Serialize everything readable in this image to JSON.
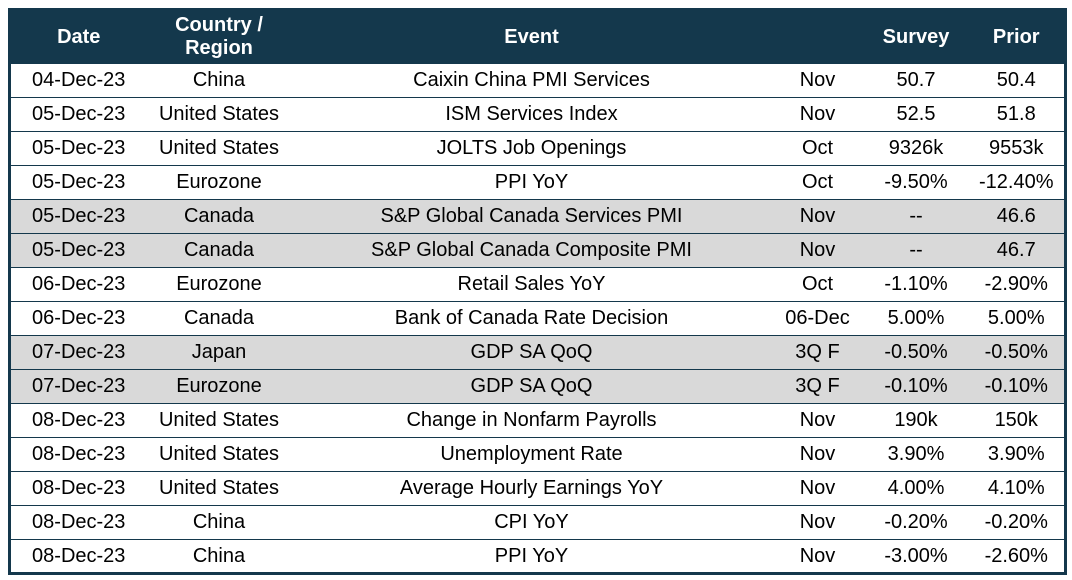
{
  "colors": {
    "header_bg": "#14384C",
    "header_text": "#FFFFFF",
    "row_shaded": "#D9D9D9",
    "border": "#14384C"
  },
  "table": {
    "columns": [
      "Date",
      "Country / Region",
      "Event",
      "",
      "Survey",
      "Prior"
    ],
    "rows": [
      {
        "date": "04-Dec-23",
        "region": "China",
        "event": "Caixin China PMI Services",
        "period": "Nov",
        "survey": "50.7",
        "prior": "50.4",
        "shaded": false
      },
      {
        "date": "05-Dec-23",
        "region": "United States",
        "event": "ISM Services Index",
        "period": "Nov",
        "survey": "52.5",
        "prior": "51.8",
        "shaded": false
      },
      {
        "date": "05-Dec-23",
        "region": "United States",
        "event": "JOLTS Job Openings",
        "period": "Oct",
        "survey": "9326k",
        "prior": "9553k",
        "shaded": false
      },
      {
        "date": "05-Dec-23",
        "region": "Eurozone",
        "event": "PPI YoY",
        "period": "Oct",
        "survey": "-9.50%",
        "prior": "-12.40%",
        "shaded": false
      },
      {
        "date": "05-Dec-23",
        "region": "Canada",
        "event": "S&P Global Canada Services PMI",
        "period": "Nov",
        "survey": "--",
        "prior": "46.6",
        "shaded": true
      },
      {
        "date": "05-Dec-23",
        "region": "Canada",
        "event": "S&P Global Canada Composite PMI",
        "period": "Nov",
        "survey": "--",
        "prior": "46.7",
        "shaded": true
      },
      {
        "date": "06-Dec-23",
        "region": "Eurozone",
        "event": "Retail Sales YoY",
        "period": "Oct",
        "survey": "-1.10%",
        "prior": "-2.90%",
        "shaded": false
      },
      {
        "date": "06-Dec-23",
        "region": "Canada",
        "event": "Bank of Canada Rate Decision",
        "period": "06-Dec",
        "survey": "5.00%",
        "prior": "5.00%",
        "shaded": false
      },
      {
        "date": "07-Dec-23",
        "region": "Japan",
        "event": "GDP SA QoQ",
        "period": "3Q F",
        "survey": "-0.50%",
        "prior": "-0.50%",
        "shaded": true
      },
      {
        "date": "07-Dec-23",
        "region": "Eurozone",
        "event": "GDP SA QoQ",
        "period": "3Q F",
        "survey": "-0.10%",
        "prior": "-0.10%",
        "shaded": true
      },
      {
        "date": "08-Dec-23",
        "region": "United States",
        "event": "Change in Nonfarm Payrolls",
        "period": "Nov",
        "survey": "190k",
        "prior": "150k",
        "shaded": false
      },
      {
        "date": "08-Dec-23",
        "region": "United States",
        "event": "Unemployment Rate",
        "period": "Nov",
        "survey": "3.90%",
        "prior": "3.90%",
        "shaded": false
      },
      {
        "date": "08-Dec-23",
        "region": "United States",
        "event": "Average Hourly Earnings YoY",
        "period": "Nov",
        "survey": "4.00%",
        "prior": "4.10%",
        "shaded": false
      },
      {
        "date": "08-Dec-23",
        "region": "China",
        "event": "CPI YoY",
        "period": "Nov",
        "survey": "-0.20%",
        "prior": "-0.20%",
        "shaded": false
      },
      {
        "date": "08-Dec-23",
        "region": "China",
        "event": "PPI YoY",
        "period": "Nov",
        "survey": "-3.00%",
        "prior": "-2.60%",
        "shaded": false
      }
    ]
  }
}
